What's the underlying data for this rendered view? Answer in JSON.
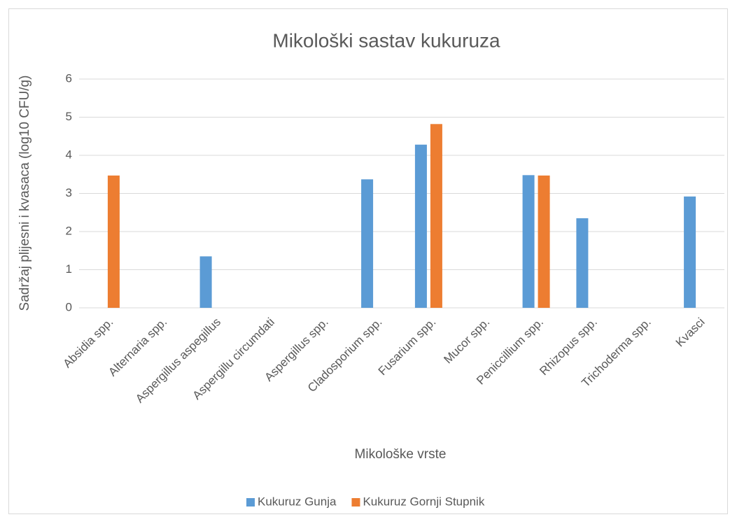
{
  "chart_data": {
    "type": "bar",
    "title": "Mikološki sastav kukuruza",
    "x_label": "Mikološke vrste",
    "y_label": "Sadržaj plijesni i kvasaca (log10 CFU/g)",
    "categories": [
      "Absidia spp.",
      "Alternaria spp.",
      "Aspergillus aspegillus",
      "Aspergillu circumdati",
      "Aspergillus spp.",
      "Cladosporium spp.",
      "Fusarium spp.",
      "Mucor spp.",
      "Peniccillium spp.",
      "Rhizopus spp.",
      "Trichoderma spp.",
      "Kvasci"
    ],
    "series": [
      {
        "name": "Kukuruz Gunja",
        "color": "#5b9bd5",
        "values": [
          0,
          0,
          1.35,
          0,
          0,
          3.37,
          4.28,
          0,
          3.48,
          2.35,
          0,
          2.92
        ]
      },
      {
        "name": "Kukuruz Gornji Stupnik",
        "color": "#ed7d31",
        "values": [
          3.47,
          0,
          0,
          0,
          0,
          0,
          4.82,
          0,
          3.47,
          0,
          0,
          0
        ]
      }
    ],
    "ylim": [
      0,
      6
    ],
    "yticks": [
      0,
      1,
      2,
      3,
      4,
      5,
      6
    ],
    "grid": true,
    "legend": "bottom"
  }
}
